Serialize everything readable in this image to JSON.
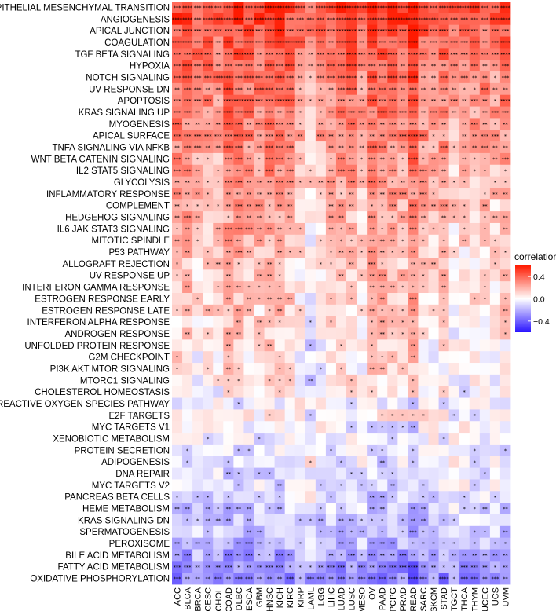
{
  "chart_data": {
    "type": "heatmap",
    "title": "",
    "xlabel": "",
    "ylabel": "",
    "legend_title": "correlation",
    "legend_ticks": [
      0.4,
      0.0,
      -0.4
    ],
    "legend_tick_labels": [
      "0.4",
      "0.0",
      "−0.4"
    ],
    "color_range": [
      -0.6,
      0.6
    ],
    "colors": {
      "high": "#ff1a00",
      "mid": "#ffffff",
      "low": "#2a14ff"
    },
    "columns": [
      "ACC",
      "BLCA",
      "BRCA",
      "CESC",
      "CHOL",
      "COAD",
      "DLBC",
      "ESCA",
      "GBM",
      "HNSC",
      "KICH",
      "KIRC",
      "KIRP",
      "LAML",
      "LGG",
      "LIHC",
      "LUAD",
      "LUSC",
      "MESO",
      "OV",
      "PAAD",
      "PCPG",
      "PRAD",
      "READ",
      "SARC",
      "SKCM",
      "STAD",
      "TGCT",
      "THCA",
      "THYM",
      "UCEC",
      "UCS",
      "UVM"
    ],
    "rows": [
      "EPITHELIAL MESENCHYMAL TRANSITION",
      "ANGIOGENESIS",
      "APICAL JUNCTION",
      "COAGULATION",
      "TGF BETA SIGNALING",
      "HYPOXIA",
      "NOTCH SIGNALING",
      "UV RESPONSE DN",
      "APOPTOSIS",
      "KRAS SIGNALING UP",
      "MYOGENESIS",
      "APICAL SURFACE",
      "TNFA SIGNALING VIA NFKB",
      "WNT BETA CATENIN SIGNALING",
      "IL2 STAT5 SIGNALING",
      "GLYCOLYSIS",
      "INFLAMMATORY RESPONSE",
      "COMPLEMENT",
      "HEDGEHOG SIGNALING",
      "IL6 JAK STAT3 SIGNALING",
      "MITOTIC SPINDLE",
      "P53 PATHWAY",
      "ALLOGRAFT REJECTION",
      "UV RESPONSE UP",
      "INTERFERON GAMMA RESPONSE",
      "ESTROGEN RESPONSE EARLY",
      "ESTROGEN RESPONSE LATE",
      "INTERFERON ALPHA RESPONSE",
      "ANDROGEN RESPONSE",
      "UNFOLDED PROTEIN RESPONSE",
      "G2M CHECKPOINT",
      "PI3K AKT MTOR SIGNALING",
      "MTORC1 SIGNALING",
      "CHOLESTEROL HOMEOSTASIS",
      "REACTIVE OXYGEN SPECIES PATHWAY",
      "E2F TARGETS",
      "MYC TARGETS V1",
      "XENOBIOTIC METABOLISM",
      "PROTEIN SECRETION",
      "ADIPOGENESIS",
      "DNA REPAIR",
      "MYC TARGETS V2",
      "PANCREAS BETA CELLS",
      "HEME METABOLISM",
      "KRAS SIGNALING DN",
      "SPERMATOGENESIS",
      "PEROXISOME",
      "BILE ACID METABOLISM",
      "FATTY ACID METABOLISM",
      "OXIDATIVE PHOSPHORYLATION"
    ],
    "row_base": [
      0.45,
      0.43,
      0.38,
      0.36,
      0.35,
      0.33,
      0.31,
      0.3,
      0.29,
      0.27,
      0.26,
      0.25,
      0.23,
      0.2,
      0.19,
      0.18,
      0.17,
      0.16,
      0.14,
      0.14,
      0.12,
      0.11,
      0.1,
      0.09,
      0.09,
      0.08,
      0.07,
      0.06,
      0.04,
      0.02,
      0.02,
      0.01,
      0.01,
      0.0,
      -0.01,
      0.0,
      -0.01,
      -0.02,
      -0.03,
      -0.04,
      -0.05,
      -0.06,
      -0.08,
      -0.1,
      -0.12,
      -0.13,
      -0.16,
      -0.2,
      -0.24,
      -0.28
    ],
    "col_effect": [
      0.06,
      0.08,
      0.0,
      0.03,
      0.0,
      0.1,
      0.1,
      0.06,
      0.04,
      0.1,
      0.08,
      0.04,
      -0.02,
      -0.1,
      -0.02,
      0.02,
      0.05,
      0.05,
      -0.03,
      0.1,
      0.1,
      0.08,
      0.06,
      0.16,
      0.03,
      0.0,
      0.04,
      -0.06,
      -0.03,
      -0.02,
      0.0,
      -0.03,
      0.04
    ],
    "cell_noise_amplitude": 0.12
  }
}
